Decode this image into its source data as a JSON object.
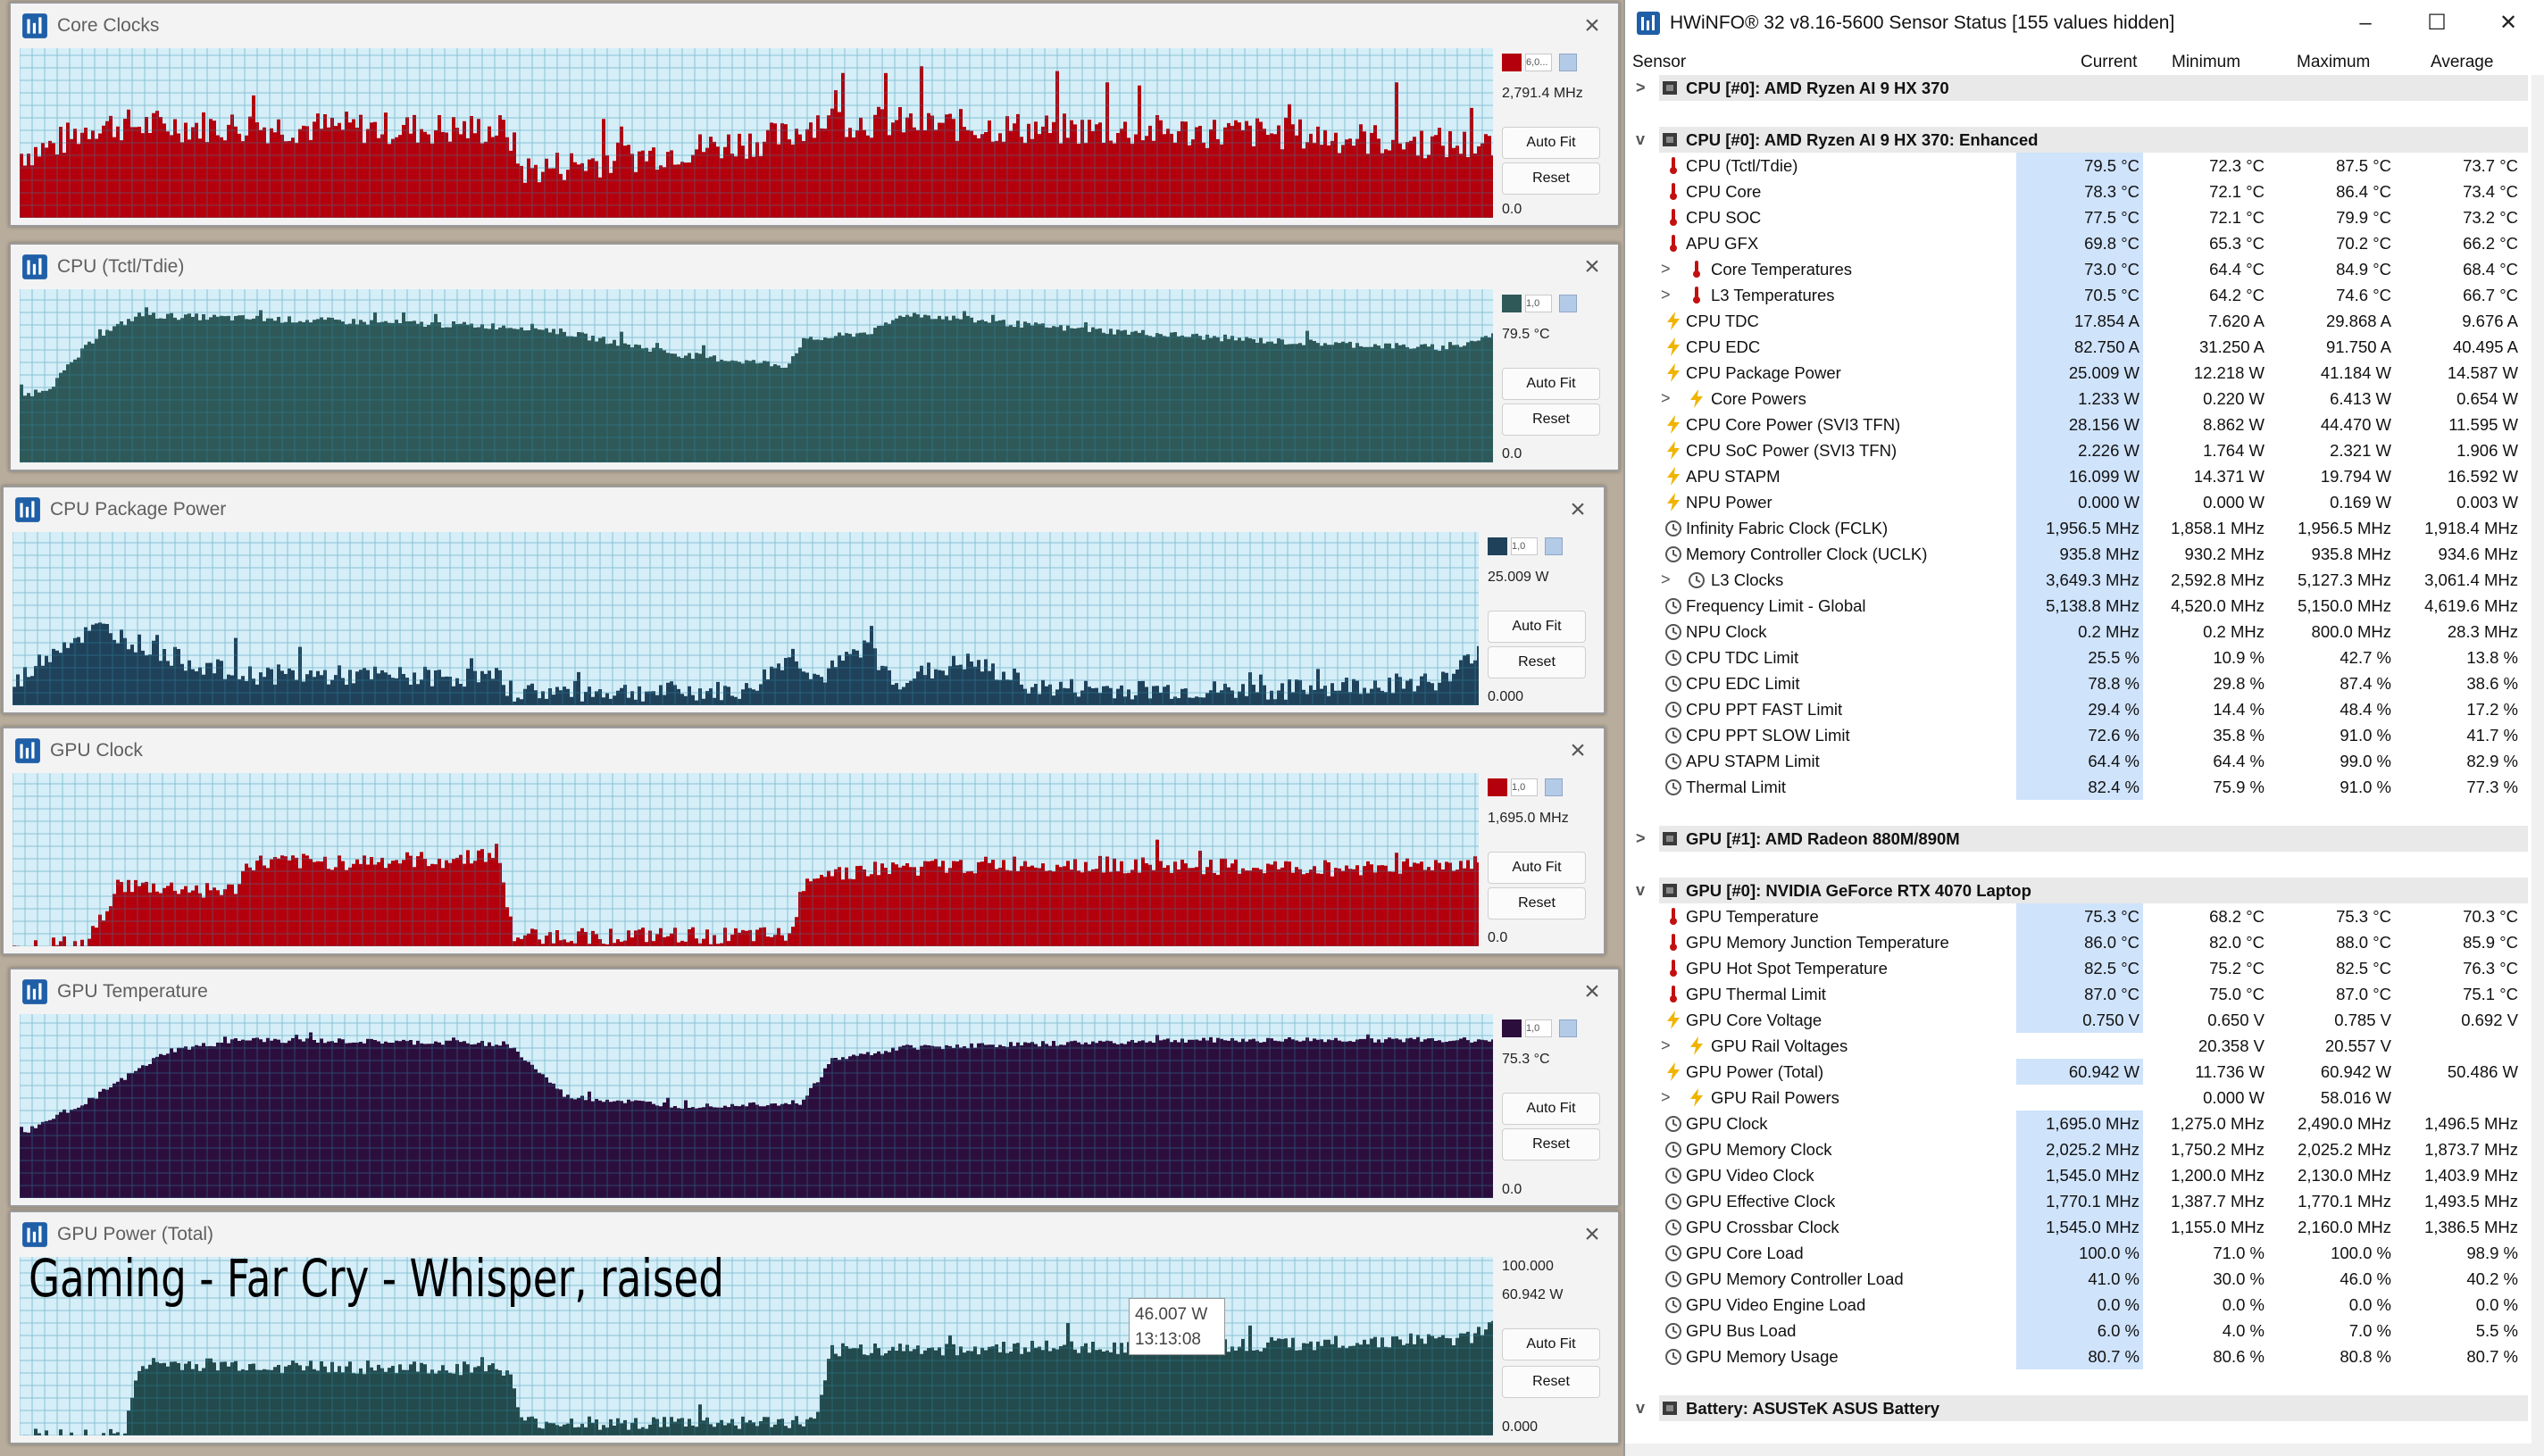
{
  "colors": {
    "core_clocks": "#b4000c",
    "cpu_temp": "#2e5958",
    "cpu_pkg_power": "#20415a",
    "gpu_clock": "#b4000c",
    "gpu_temp": "#2c0e3d",
    "gpu_power": "#234a4c",
    "grid": "#2e8ba8",
    "plot_bg": "#d5eef8"
  },
  "overlay_caption": "Gaming - Far Cry - Whisper, raised",
  "tooltip": {
    "value": "46.007 W",
    "time": "13:13:08"
  },
  "graphs": [
    {
      "title": "Core Clocks",
      "top_label": "",
      "swatch_text": "6,0...",
      "current": "2,791.4 MHz",
      "min_label": "0.0",
      "auto_fit": "Auto Fit",
      "reset": "Reset"
    },
    {
      "title": "CPU (Tctl/Tdie)",
      "top_label": "",
      "swatch_text": "1,0",
      "current": "79.5 °C",
      "min_label": "0.0",
      "auto_fit": "Auto Fit",
      "reset": "Reset"
    },
    {
      "title": "CPU Package Power",
      "top_label": "",
      "swatch_text": "1,0",
      "current": "25.009 W",
      "min_label": "0.000",
      "auto_fit": "Auto Fit",
      "reset": "Reset"
    },
    {
      "title": "GPU Clock",
      "top_label": "",
      "swatch_text": "1,0",
      "current": "1,695.0 MHz",
      "min_label": "0.0",
      "auto_fit": "Auto Fit",
      "reset": "Reset"
    },
    {
      "title": "GPU Temperature",
      "top_label": "",
      "swatch_text": "1,0",
      "current": "75.3 °C",
      "min_label": "0.0",
      "auto_fit": "Auto Fit",
      "reset": "Reset"
    },
    {
      "title": "GPU Power (Total)",
      "top_label": "100.000",
      "swatch_text": "",
      "current": "60.942 W",
      "min_label": "0.000",
      "auto_fit": "Auto Fit",
      "reset": "Reset"
    }
  ],
  "hwinfo": {
    "title": "HWiNFO® 32 v8.16-5600 Sensor Status [155 values hidden]",
    "minimize": "–",
    "maximize": "☐",
    "close": "✕",
    "columns": {
      "sensor": "Sensor",
      "current": "Current",
      "minimum": "Minimum",
      "maximum": "Maximum",
      "average": "Average"
    },
    "rows": [
      {
        "type": "group",
        "expander": ">",
        "name": "CPU [#0]: AMD Ryzen AI 9 HX 370"
      },
      {
        "type": "blank"
      },
      {
        "type": "group",
        "expander": "v",
        "name": "CPU [#0]: AMD Ryzen AI 9 HX 370: Enhanced"
      },
      {
        "type": "item",
        "icon": "thermometer",
        "name": "CPU (Tctl/Tdie)",
        "cur": "79.5 °C",
        "min": "72.3 °C",
        "max": "87.5 °C",
        "avg": "73.7 °C"
      },
      {
        "type": "item",
        "icon": "thermometer",
        "name": "CPU Core",
        "cur": "78.3 °C",
        "min": "72.1 °C",
        "max": "86.4 °C",
        "avg": "73.4 °C"
      },
      {
        "type": "item",
        "icon": "thermometer",
        "name": "CPU SOC",
        "cur": "77.5 °C",
        "min": "72.1 °C",
        "max": "79.9 °C",
        "avg": "73.2 °C"
      },
      {
        "type": "item",
        "icon": "thermometer",
        "name": "APU GFX",
        "cur": "69.8 °C",
        "min": "65.3 °C",
        "max": "70.2 °C",
        "avg": "66.2 °C"
      },
      {
        "type": "item",
        "icon": "thermometer",
        "sub": true,
        "expander": ">",
        "name": "Core Temperatures",
        "cur": "73.0 °C",
        "min": "64.4 °C",
        "max": "84.9 °C",
        "avg": "68.4 °C"
      },
      {
        "type": "item",
        "icon": "thermometer",
        "sub": true,
        "expander": ">",
        "name": "L3 Temperatures",
        "cur": "70.5 °C",
        "min": "64.2 °C",
        "max": "74.6 °C",
        "avg": "66.7 °C"
      },
      {
        "type": "item",
        "icon": "bolt",
        "name": "CPU TDC",
        "cur": "17.854 A",
        "min": "7.620 A",
        "max": "29.868 A",
        "avg": "9.676 A"
      },
      {
        "type": "item",
        "icon": "bolt",
        "name": "CPU EDC",
        "cur": "82.750 A",
        "min": "31.250 A",
        "max": "91.750 A",
        "avg": "40.495 A"
      },
      {
        "type": "item",
        "icon": "bolt",
        "name": "CPU Package Power",
        "cur": "25.009 W",
        "min": "12.218 W",
        "max": "41.184 W",
        "avg": "14.587 W"
      },
      {
        "type": "item",
        "icon": "bolt",
        "sub": true,
        "expander": ">",
        "name": "Core Powers",
        "cur": "1.233 W",
        "min": "0.220 W",
        "max": "6.413 W",
        "avg": "0.654 W"
      },
      {
        "type": "item",
        "icon": "bolt",
        "name": "CPU Core Power (SVI3 TFN)",
        "cur": "28.156 W",
        "min": "8.862 W",
        "max": "44.470 W",
        "avg": "11.595 W"
      },
      {
        "type": "item",
        "icon": "bolt",
        "name": "CPU SoC Power (SVI3 TFN)",
        "cur": "2.226 W",
        "min": "1.764 W",
        "max": "2.321 W",
        "avg": "1.906 W"
      },
      {
        "type": "item",
        "icon": "bolt",
        "name": "APU STAPM",
        "cur": "16.099 W",
        "min": "14.371 W",
        "max": "19.794 W",
        "avg": "16.592 W"
      },
      {
        "type": "item",
        "icon": "bolt",
        "name": "NPU Power",
        "cur": "0.000 W",
        "min": "0.000 W",
        "max": "0.169 W",
        "avg": "0.003 W"
      },
      {
        "type": "item",
        "icon": "clock",
        "name": "Infinity Fabric Clock (FCLK)",
        "cur": "1,956.5 MHz",
        "min": "1,858.1 MHz",
        "max": "1,956.5 MHz",
        "avg": "1,918.4 MHz"
      },
      {
        "type": "item",
        "icon": "clock",
        "name": "Memory Controller Clock (UCLK)",
        "cur": "935.8 MHz",
        "min": "930.2 MHz",
        "max": "935.8 MHz",
        "avg": "934.6 MHz"
      },
      {
        "type": "item",
        "icon": "clock",
        "sub": true,
        "expander": ">",
        "name": "L3 Clocks",
        "cur": "3,649.3 MHz",
        "min": "2,592.8 MHz",
        "max": "5,127.3 MHz",
        "avg": "3,061.4 MHz"
      },
      {
        "type": "item",
        "icon": "clock",
        "name": "Frequency Limit - Global",
        "cur": "5,138.8 MHz",
        "min": "4,520.0 MHz",
        "max": "5,150.0 MHz",
        "avg": "4,619.6 MHz"
      },
      {
        "type": "item",
        "icon": "clock",
        "name": "NPU Clock",
        "cur": "0.2 MHz",
        "min": "0.2 MHz",
        "max": "800.0 MHz",
        "avg": "28.3 MHz"
      },
      {
        "type": "item",
        "icon": "clock",
        "name": "CPU TDC Limit",
        "cur": "25.5 %",
        "min": "10.9 %",
        "max": "42.7 %",
        "avg": "13.8 %"
      },
      {
        "type": "item",
        "icon": "clock",
        "name": "CPU EDC Limit",
        "cur": "78.8 %",
        "min": "29.8 %",
        "max": "87.4 %",
        "avg": "38.6 %"
      },
      {
        "type": "item",
        "icon": "clock",
        "name": "CPU PPT FAST Limit",
        "cur": "29.4 %",
        "min": "14.4 %",
        "max": "48.4 %",
        "avg": "17.2 %"
      },
      {
        "type": "item",
        "icon": "clock",
        "name": "CPU PPT SLOW Limit",
        "cur": "72.6 %",
        "min": "35.8 %",
        "max": "91.0 %",
        "avg": "41.7 %"
      },
      {
        "type": "item",
        "icon": "clock",
        "name": "APU STAPM Limit",
        "cur": "64.4 %",
        "min": "64.4 %",
        "max": "99.0 %",
        "avg": "82.9 %"
      },
      {
        "type": "item",
        "icon": "clock",
        "name": "Thermal Limit",
        "cur": "82.4 %",
        "min": "75.9 %",
        "max": "91.0 %",
        "avg": "77.3 %"
      },
      {
        "type": "blank"
      },
      {
        "type": "group",
        "expander": ">",
        "name": "GPU [#1]: AMD Radeon 880M/890M"
      },
      {
        "type": "blank"
      },
      {
        "type": "group",
        "expander": "v",
        "name": "GPU [#0]: NVIDIA GeForce RTX 4070 Laptop"
      },
      {
        "type": "item",
        "icon": "thermometer",
        "name": "GPU Temperature",
        "cur": "75.3 °C",
        "min": "68.2 °C",
        "max": "75.3 °C",
        "avg": "70.3 °C"
      },
      {
        "type": "item",
        "icon": "thermometer",
        "name": "GPU Memory Junction Temperature",
        "cur": "86.0 °C",
        "min": "82.0 °C",
        "max": "88.0 °C",
        "avg": "85.9 °C"
      },
      {
        "type": "item",
        "icon": "thermometer",
        "name": "GPU Hot Spot Temperature",
        "cur": "82.5 °C",
        "min": "75.2 °C",
        "max": "82.5 °C",
        "avg": "76.3 °C"
      },
      {
        "type": "item",
        "icon": "thermometer",
        "name": "GPU Thermal Limit",
        "cur": "87.0 °C",
        "min": "75.0 °C",
        "max": "87.0 °C",
        "avg": "75.1 °C"
      },
      {
        "type": "item",
        "icon": "bolt",
        "name": "GPU Core Voltage",
        "cur": "0.750 V",
        "min": "0.650 V",
        "max": "0.785 V",
        "avg": "0.692 V"
      },
      {
        "type": "item",
        "icon": "bolt",
        "sub": true,
        "expander": ">",
        "name": "GPU Rail Voltages",
        "cur": "",
        "min": "20.358 V",
        "max": "20.557 V",
        "avg": ""
      },
      {
        "type": "item",
        "icon": "bolt",
        "name": "GPU Power (Total)",
        "cur": "60.942 W",
        "min": "11.736 W",
        "max": "60.942 W",
        "avg": "50.486 W"
      },
      {
        "type": "item",
        "icon": "bolt",
        "sub": true,
        "expander": ">",
        "name": "GPU Rail Powers",
        "cur": "",
        "min": "0.000 W",
        "max": "58.016 W",
        "avg": ""
      },
      {
        "type": "item",
        "icon": "clock",
        "name": "GPU Clock",
        "cur": "1,695.0 MHz",
        "min": "1,275.0 MHz",
        "max": "2,490.0 MHz",
        "avg": "1,496.5 MHz"
      },
      {
        "type": "item",
        "icon": "clock",
        "name": "GPU Memory Clock",
        "cur": "2,025.2 MHz",
        "min": "1,750.2 MHz",
        "max": "2,025.2 MHz",
        "avg": "1,873.7 MHz"
      },
      {
        "type": "item",
        "icon": "clock",
        "name": "GPU Video Clock",
        "cur": "1,545.0 MHz",
        "min": "1,200.0 MHz",
        "max": "2,130.0 MHz",
        "avg": "1,403.9 MHz"
      },
      {
        "type": "item",
        "icon": "clock",
        "name": "GPU Effective Clock",
        "cur": "1,770.1 MHz",
        "min": "1,387.7 MHz",
        "max": "1,770.1 MHz",
        "avg": "1,493.5 MHz"
      },
      {
        "type": "item",
        "icon": "clock",
        "name": "GPU Crossbar Clock",
        "cur": "1,545.0 MHz",
        "min": "1,155.0 MHz",
        "max": "2,160.0 MHz",
        "avg": "1,386.5 MHz"
      },
      {
        "type": "item",
        "icon": "clock",
        "name": "GPU Core Load",
        "cur": "100.0 %",
        "min": "71.0 %",
        "max": "100.0 %",
        "avg": "98.9 %"
      },
      {
        "type": "item",
        "icon": "clock",
        "name": "GPU Memory Controller Load",
        "cur": "41.0 %",
        "min": "30.0 %",
        "max": "46.0 %",
        "avg": "40.2 %"
      },
      {
        "type": "item",
        "icon": "clock",
        "name": "GPU Video Engine Load",
        "cur": "0.0 %",
        "min": "0.0 %",
        "max": "0.0 %",
        "avg": "0.0 %"
      },
      {
        "type": "item",
        "icon": "clock",
        "name": "GPU Bus Load",
        "cur": "6.0 %",
        "min": "4.0 %",
        "max": "7.0 %",
        "avg": "5.5 %"
      },
      {
        "type": "item",
        "icon": "clock",
        "name": "GPU Memory Usage",
        "cur": "80.7 %",
        "min": "80.6 %",
        "max": "80.8 %",
        "avg": "80.7 %"
      },
      {
        "type": "blank"
      },
      {
        "type": "group",
        "expander": "v",
        "name": "Battery: ASUSTeK ASUS Battery"
      }
    ]
  }
}
